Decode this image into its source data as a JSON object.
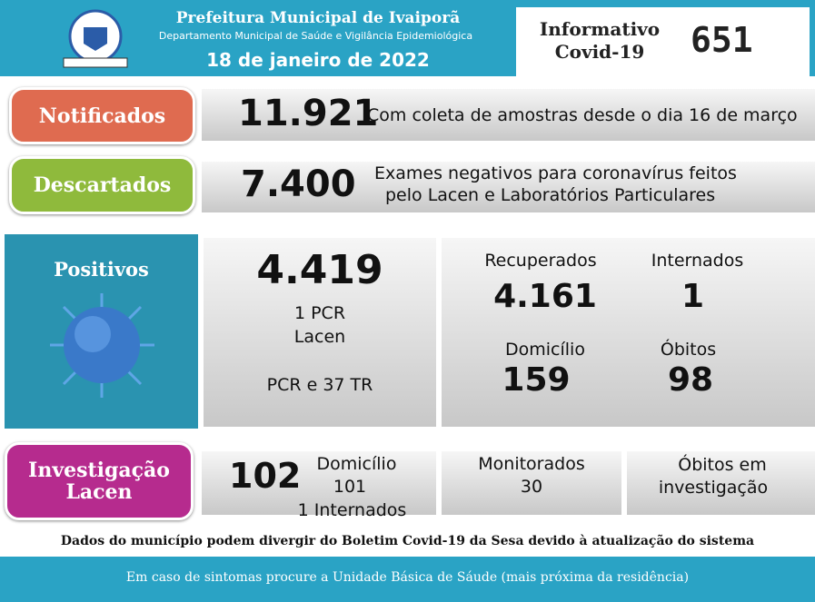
{
  "header": {
    "title": "Prefeitura Municipal de Ivaiporã",
    "subtitle": "Departamento Municipal de Saúde e Vigilância Epidemiológica",
    "date": "18 de janeiro de 2022",
    "bulletin_label": [
      "Informativo",
      "Covid-19"
    ],
    "bulletin_number": "651"
  },
  "notificados": {
    "label": "Notificados",
    "value": "11.921",
    "note": "Com coleta de amostras desde o dia 16 de março"
  },
  "descartados": {
    "label": "Descartados",
    "value": "7.400",
    "note": [
      "Exames negativos para coronavírus feitos",
      "pelo Lacen e Laboratórios Particulares"
    ]
  },
  "positivos": {
    "label": "Positivos",
    "total": "4.419",
    "lines": [
      "1 PCR",
      "Lacen",
      "PCR e 37 TR"
    ],
    "recuperados": {
      "label": "Recuperados",
      "value": "4.161"
    },
    "internados": {
      "label": "Internados",
      "value": "1"
    },
    "domicilio": {
      "label": "Domicílio",
      "value": "159"
    },
    "obitos": {
      "label": "Óbitos",
      "value": "98"
    }
  },
  "investigacao": {
    "label": [
      "Investigação",
      "Lacen"
    ],
    "total": "102",
    "domicilio": [
      "Domicílio",
      "101",
      "1 Internados"
    ],
    "monitorados": [
      "Monitorados",
      "30"
    ],
    "obitos": [
      "Óbitos em",
      "investigação"
    ]
  },
  "footer": {
    "disclaimer": "Dados do município podem divergir do Boletim Covid-19 da Sesa devido à atualização do sistema",
    "banner": "Em caso de sintomas procure a Unidade Básica de Sáude (mais próxima da residência)"
  }
}
